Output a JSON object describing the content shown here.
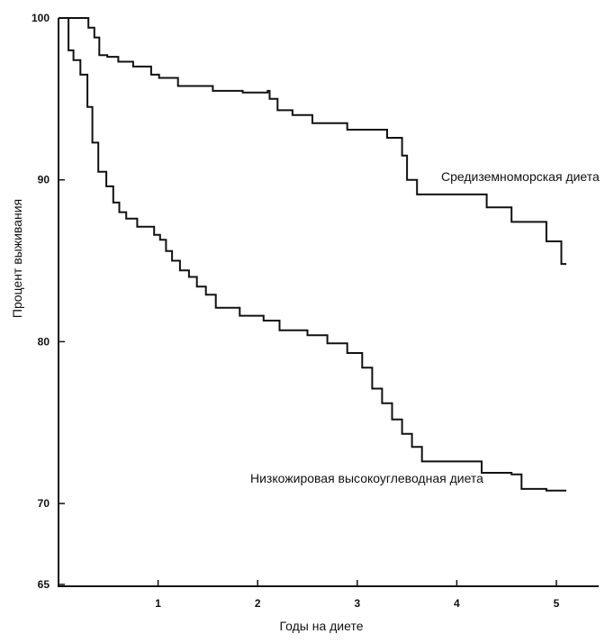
{
  "chart_data": {
    "type": "line",
    "subtype": "step",
    "title": "",
    "xlabel": "Годы на диете",
    "ylabel": "Процент выживания",
    "xlim": [
      0,
      5.3
    ],
    "ylim": [
      65,
      100
    ],
    "x_ticks": [
      "1",
      "2",
      "3",
      "4",
      "5"
    ],
    "y_ticks": [
      "65",
      "70",
      "80",
      "90",
      "100"
    ],
    "series": [
      {
        "name": "Средиземноморская диета",
        "x": [
          0,
          0.05,
          0.26,
          0.3,
          0.36,
          0.41,
          0.49,
          0.6,
          0.75,
          0.93,
          1.01,
          1.2,
          1.55,
          1.85,
          2.1,
          2.12,
          2.2,
          2.35,
          2.55,
          2.9,
          3.3,
          3.45,
          3.5,
          3.6,
          3.95,
          4.3,
          4.55,
          4.9,
          5.05,
          5.1
        ],
        "values": [
          100,
          100,
          100,
          99.4,
          98.8,
          97.7,
          97.6,
          97.3,
          97.0,
          96.5,
          96.3,
          95.8,
          95.5,
          95.4,
          95.5,
          95.0,
          94.3,
          94.0,
          93.5,
          93.1,
          92.6,
          91.5,
          90.0,
          89.1,
          89.1,
          88.3,
          87.4,
          86.2,
          84.8,
          84.8
        ]
      },
      {
        "name": "Низкожировая высокоуглеводная диета",
        "x": [
          0,
          0.1,
          0.15,
          0.22,
          0.29,
          0.34,
          0.4,
          0.48,
          0.55,
          0.61,
          0.68,
          0.79,
          0.96,
          1.02,
          1.08,
          1.14,
          1.22,
          1.31,
          1.39,
          1.48,
          1.58,
          1.82,
          2.06,
          2.22,
          2.5,
          2.7,
          2.9,
          3.05,
          3.15,
          3.25,
          3.35,
          3.45,
          3.55,
          3.65,
          4.05,
          4.25,
          4.55,
          4.65,
          4.9,
          5.1
        ],
        "values": [
          100,
          98.0,
          97.4,
          96.5,
          94.5,
          92.3,
          90.5,
          89.6,
          88.6,
          88.0,
          87.6,
          87.1,
          86.6,
          86.3,
          85.6,
          85.0,
          84.4,
          84.0,
          83.4,
          82.9,
          82.1,
          81.6,
          81.3,
          80.7,
          80.4,
          79.9,
          79.3,
          78.4,
          77.1,
          76.2,
          75.2,
          74.3,
          73.5,
          72.6,
          72.6,
          71.9,
          71.8,
          70.9,
          70.8,
          70.8
        ]
      }
    ]
  }
}
